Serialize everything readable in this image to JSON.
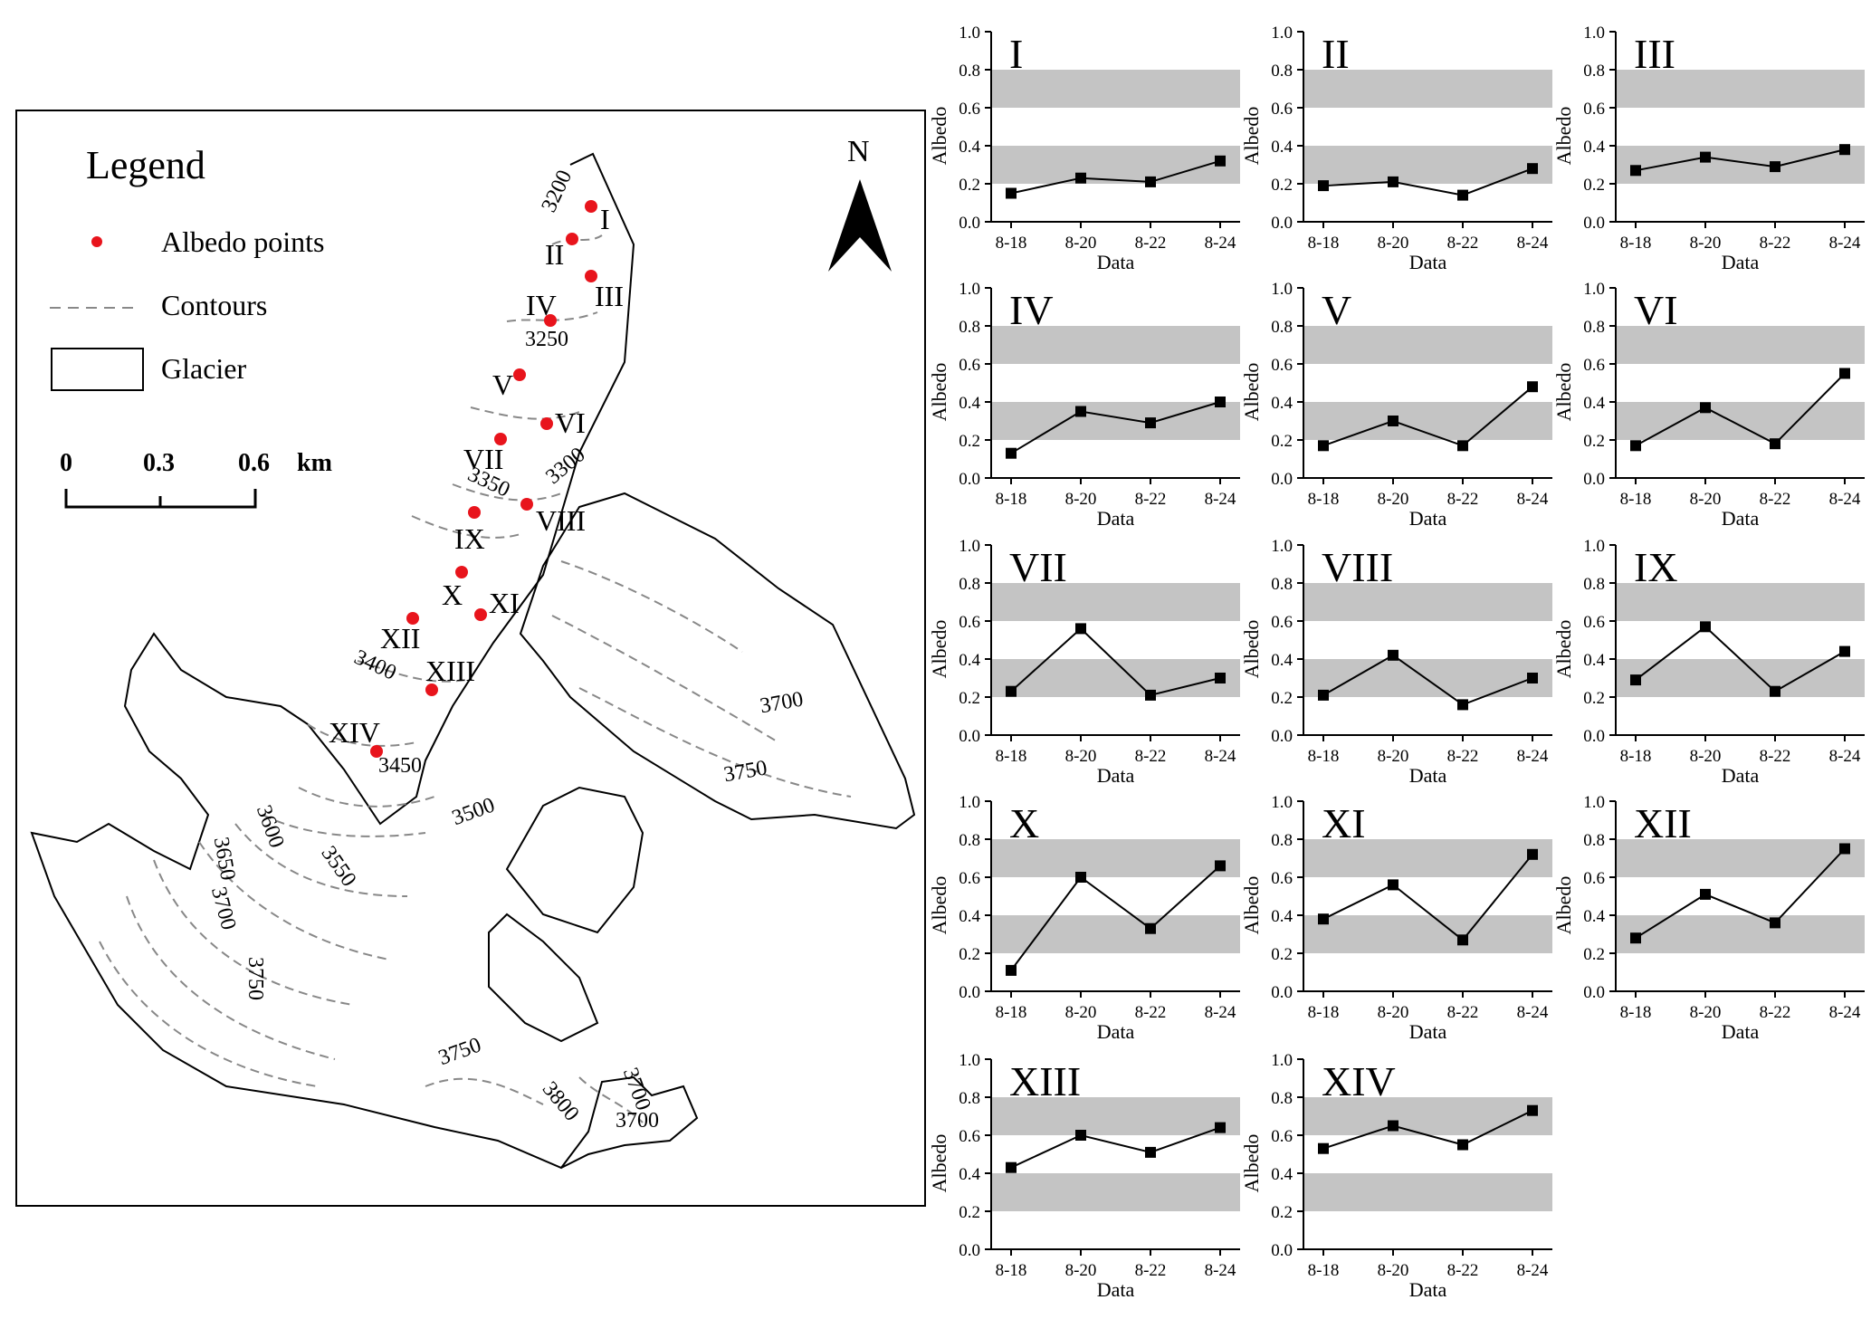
{
  "map": {
    "legend": {
      "title": "Legend",
      "items": [
        {
          "label": "Albedo points",
          "symbol": "red-dot"
        },
        {
          "label": "Contours",
          "symbol": "dashed-line"
        },
        {
          "label": "Glacier",
          "symbol": "outline-box"
        }
      ]
    },
    "scale_bar": {
      "ticks": [
        "0",
        "0.3",
        "0.6"
      ],
      "unit": "km"
    },
    "north_label": "N",
    "point_labels": [
      "I",
      "II",
      "III",
      "IV",
      "V",
      "VI",
      "VII",
      "VIII",
      "IX",
      "X",
      "XI",
      "XII",
      "XIII",
      "XIV"
    ],
    "contour_labels": [
      "3200",
      "3250",
      "3300",
      "3350",
      "3400",
      "3450",
      "3500",
      "3550",
      "3600",
      "3650",
      "3700",
      "3750",
      "3700",
      "3750",
      "3700",
      "3750",
      "3800",
      "3700"
    ],
    "colors": {
      "point": "#e8141c",
      "contour": "#888888",
      "outline": "#000000"
    }
  },
  "chart_data": [
    {
      "type": "line",
      "title": "I",
      "categories": [
        "8-18",
        "8-20",
        "8-22",
        "8-24"
      ],
      "values": [
        0.15,
        0.23,
        0.21,
        0.32
      ],
      "xlabel": "Data",
      "ylabel": "Albedo",
      "ylim": [
        0,
        1.0
      ],
      "yticks": [
        "0.0",
        "0.2",
        "0.4",
        "0.6",
        "0.8",
        "1.0"
      ],
      "bands": [
        [
          0.2,
          0.4
        ],
        [
          0.6,
          0.8
        ]
      ]
    },
    {
      "type": "line",
      "title": "II",
      "categories": [
        "8-18",
        "8-20",
        "8-22",
        "8-24"
      ],
      "values": [
        0.19,
        0.21,
        0.14,
        0.28
      ],
      "xlabel": "Data",
      "ylabel": "Albedo",
      "ylim": [
        0,
        1.0
      ],
      "yticks": [
        "0.0",
        "0.2",
        "0.4",
        "0.6",
        "0.8",
        "1.0"
      ],
      "bands": [
        [
          0.2,
          0.4
        ],
        [
          0.6,
          0.8
        ]
      ]
    },
    {
      "type": "line",
      "title": "III",
      "categories": [
        "8-18",
        "8-20",
        "8-22",
        "8-24"
      ],
      "values": [
        0.27,
        0.34,
        0.29,
        0.38
      ],
      "xlabel": "Data",
      "ylabel": "Albedo",
      "ylim": [
        0,
        1.0
      ],
      "yticks": [
        "0.0",
        "0.2",
        "0.4",
        "0.6",
        "0.8",
        "1.0"
      ],
      "bands": [
        [
          0.2,
          0.4
        ],
        [
          0.6,
          0.8
        ]
      ]
    },
    {
      "type": "line",
      "title": "IV",
      "categories": [
        "8-18",
        "8-20",
        "8-22",
        "8-24"
      ],
      "values": [
        0.13,
        0.35,
        0.29,
        0.4
      ],
      "xlabel": "Data",
      "ylabel": "Albedo",
      "ylim": [
        0,
        1.0
      ],
      "yticks": [
        "0.0",
        "0.2",
        "0.4",
        "0.6",
        "0.8",
        "1.0"
      ],
      "bands": [
        [
          0.2,
          0.4
        ],
        [
          0.6,
          0.8
        ]
      ]
    },
    {
      "type": "line",
      "title": "V",
      "categories": [
        "8-18",
        "8-20",
        "8-22",
        "8-24"
      ],
      "values": [
        0.17,
        0.3,
        0.17,
        0.48
      ],
      "xlabel": "Data",
      "ylabel": "Albedo",
      "ylim": [
        0,
        1.0
      ],
      "yticks": [
        "0.0",
        "0.2",
        "0.4",
        "0.6",
        "0.8",
        "1.0"
      ],
      "bands": [
        [
          0.2,
          0.4
        ],
        [
          0.6,
          0.8
        ]
      ]
    },
    {
      "type": "line",
      "title": "VI",
      "categories": [
        "8-18",
        "8-20",
        "8-22",
        "8-24"
      ],
      "values": [
        0.17,
        0.37,
        0.18,
        0.55
      ],
      "xlabel": "Data",
      "ylabel": "Albedo",
      "ylim": [
        0,
        1.0
      ],
      "yticks": [
        "0.0",
        "0.2",
        "0.4",
        "0.6",
        "0.8",
        "1.0"
      ],
      "bands": [
        [
          0.2,
          0.4
        ],
        [
          0.6,
          0.8
        ]
      ]
    },
    {
      "type": "line",
      "title": "VII",
      "categories": [
        "8-18",
        "8-20",
        "8-22",
        "8-24"
      ],
      "values": [
        0.23,
        0.56,
        0.21,
        0.3
      ],
      "xlabel": "Data",
      "ylabel": "Albedo",
      "ylim": [
        0,
        1.0
      ],
      "yticks": [
        "0.0",
        "0.2",
        "0.4",
        "0.6",
        "0.8",
        "1.0"
      ],
      "bands": [
        [
          0.2,
          0.4
        ],
        [
          0.6,
          0.8
        ]
      ]
    },
    {
      "type": "line",
      "title": "VIII",
      "categories": [
        "8-18",
        "8-20",
        "8-22",
        "8-24"
      ],
      "values": [
        0.21,
        0.42,
        0.16,
        0.3
      ],
      "xlabel": "Data",
      "ylabel": "Albedo",
      "ylim": [
        0,
        1.0
      ],
      "yticks": [
        "0.0",
        "0.2",
        "0.4",
        "0.6",
        "0.8",
        "1.0"
      ],
      "bands": [
        [
          0.2,
          0.4
        ],
        [
          0.6,
          0.8
        ]
      ]
    },
    {
      "type": "line",
      "title": "IX",
      "categories": [
        "8-18",
        "8-20",
        "8-22",
        "8-24"
      ],
      "values": [
        0.29,
        0.57,
        0.23,
        0.44
      ],
      "xlabel": "Data",
      "ylabel": "Albedo",
      "ylim": [
        0,
        1.0
      ],
      "yticks": [
        "0.0",
        "0.2",
        "0.4",
        "0.6",
        "0.8",
        "1.0"
      ],
      "bands": [
        [
          0.2,
          0.4
        ],
        [
          0.6,
          0.8
        ]
      ]
    },
    {
      "type": "line",
      "title": "X",
      "categories": [
        "8-18",
        "8-20",
        "8-22",
        "8-24"
      ],
      "values": [
        0.11,
        0.6,
        0.33,
        0.66
      ],
      "xlabel": "Data",
      "ylabel": "Albedo",
      "ylim": [
        0,
        1.0
      ],
      "yticks": [
        "0.0",
        "0.2",
        "0.4",
        "0.6",
        "0.8",
        "1.0"
      ],
      "bands": [
        [
          0.2,
          0.4
        ],
        [
          0.6,
          0.8
        ]
      ]
    },
    {
      "type": "line",
      "title": "XI",
      "categories": [
        "8-18",
        "8-20",
        "8-22",
        "8-24"
      ],
      "values": [
        0.38,
        0.56,
        0.27,
        0.72
      ],
      "xlabel": "Data",
      "ylabel": "Albedo",
      "ylim": [
        0,
        1.0
      ],
      "yticks": [
        "0.0",
        "0.2",
        "0.4",
        "0.6",
        "0.8",
        "1.0"
      ],
      "bands": [
        [
          0.2,
          0.4
        ],
        [
          0.6,
          0.8
        ]
      ]
    },
    {
      "type": "line",
      "title": "XII",
      "categories": [
        "8-18",
        "8-20",
        "8-22",
        "8-24"
      ],
      "values": [
        0.28,
        0.51,
        0.36,
        0.75
      ],
      "xlabel": "Data",
      "ylabel": "Albedo",
      "ylim": [
        0,
        1.0
      ],
      "yticks": [
        "0.0",
        "0.2",
        "0.4",
        "0.6",
        "0.8",
        "1.0"
      ],
      "bands": [
        [
          0.2,
          0.4
        ],
        [
          0.6,
          0.8
        ]
      ]
    },
    {
      "type": "line",
      "title": "XIII",
      "categories": [
        "8-18",
        "8-20",
        "8-22",
        "8-24"
      ],
      "values": [
        0.43,
        0.6,
        0.51,
        0.64
      ],
      "xlabel": "Data",
      "ylabel": "Albedo",
      "ylim": [
        0,
        1.0
      ],
      "yticks": [
        "0.0",
        "0.2",
        "0.4",
        "0.6",
        "0.8",
        "1.0"
      ],
      "bands": [
        [
          0.2,
          0.4
        ],
        [
          0.6,
          0.8
        ]
      ]
    },
    {
      "type": "line",
      "title": "XIV",
      "categories": [
        "8-18",
        "8-20",
        "8-22",
        "8-24"
      ],
      "values": [
        0.53,
        0.65,
        0.55,
        0.73
      ],
      "xlabel": "Data",
      "ylabel": "Albedo",
      "ylim": [
        0,
        1.0
      ],
      "yticks": [
        "0.0",
        "0.2",
        "0.4",
        "0.6",
        "0.8",
        "1.0"
      ],
      "bands": [
        [
          0.2,
          0.4
        ],
        [
          0.6,
          0.8
        ]
      ]
    }
  ]
}
